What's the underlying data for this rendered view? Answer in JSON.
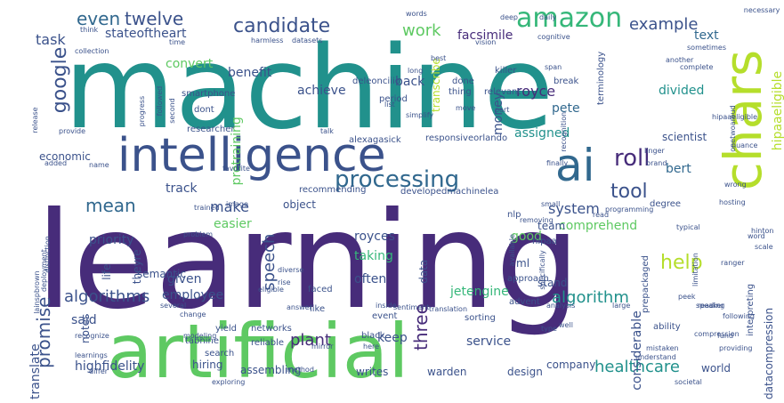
{
  "word_cloud": {
    "palette": {
      "dark_purple": "#472c7a",
      "indigo": "#3b528b",
      "blue": "#31688e",
      "teal": "#21918c",
      "sea_green": "#35b779",
      "green": "#5ec962",
      "lime": "#b5de2b",
      "yellow": "#dde318",
      "deep_purple": "#440154"
    },
    "words": [
      {
        "text": "machine",
        "color": "#21918c"
      },
      {
        "text": "learning",
        "color": "#472c7a"
      },
      {
        "text": "artificial",
        "color": "#5ec962"
      },
      {
        "text": "intelligence",
        "color": "#3b528b"
      },
      {
        "text": "chars",
        "color": "#b5de2b"
      },
      {
        "text": "ai",
        "color": "#31688e"
      },
      {
        "text": "amazon",
        "color": "#35b779"
      },
      {
        "text": "google",
        "color": "#3b528b"
      },
      {
        "text": "candidate",
        "color": "#3b528b"
      },
      {
        "text": "processing",
        "color": "#31688e"
      },
      {
        "text": "roll",
        "color": "#472c7a"
      },
      {
        "text": "tool",
        "color": "#3b528b"
      },
      {
        "text": "even",
        "color": "#31688e"
      },
      {
        "text": "twelve",
        "color": "#3b528b"
      },
      {
        "text": "example",
        "color": "#3b528b"
      },
      {
        "text": "help",
        "color": "#b5de2b"
      },
      {
        "text": "speech",
        "color": "#3b528b"
      },
      {
        "text": "three",
        "color": "#472c7a"
      },
      {
        "text": "algorithms",
        "color": "#3b528b"
      },
      {
        "text": "algorithm",
        "color": "#21918c"
      },
      {
        "text": "work",
        "color": "#5ec962"
      },
      {
        "text": "task",
        "color": "#3b528b"
      },
      {
        "text": "stateoftheart",
        "color": "#3b528b"
      },
      {
        "text": "facsimile",
        "color": "#472c7a"
      },
      {
        "text": "text",
        "color": "#31688e"
      },
      {
        "text": "mean",
        "color": "#31688e"
      },
      {
        "text": "make",
        "color": "#3b528b"
      },
      {
        "text": "system",
        "color": "#3b528b"
      },
      {
        "text": "promise",
        "color": "#3b528b"
      },
      {
        "text": "healthcare",
        "color": "#21918c"
      },
      {
        "text": "convert",
        "color": "#5ec962"
      },
      {
        "text": "benefit",
        "color": "#3b528b"
      },
      {
        "text": "achieve",
        "color": "#3b528b"
      },
      {
        "text": "royce",
        "color": "#472c7a"
      },
      {
        "text": "pete",
        "color": "#31688e"
      },
      {
        "text": "divided",
        "color": "#21918c"
      },
      {
        "text": "money",
        "color": "#3b528b"
      },
      {
        "text": "transcribe",
        "color": "#b5de2b"
      },
      {
        "text": "back",
        "color": "#3b528b"
      },
      {
        "text": "assigned",
        "color": "#21918c"
      },
      {
        "text": "bert",
        "color": "#31688e"
      },
      {
        "text": "hipaaeligible",
        "color": "#b5de2b"
      },
      {
        "text": "pretraining",
        "color": "#5ec962"
      },
      {
        "text": "economic",
        "color": "#3b528b"
      },
      {
        "text": "priority",
        "color": "#3b528b"
      },
      {
        "text": "track",
        "color": "#3b528b"
      },
      {
        "text": "comprehend",
        "color": "#5ec962"
      },
      {
        "text": "easier",
        "color": "#5ec962"
      },
      {
        "text": "royces",
        "color": "#3b528b"
      },
      {
        "text": "taking",
        "color": "#35b779"
      },
      {
        "text": "good",
        "color": "#5ec962"
      },
      {
        "text": "given",
        "color": "#3b528b"
      },
      {
        "text": "often",
        "color": "#3b528b"
      },
      {
        "text": "employee",
        "color": "#3b528b"
      },
      {
        "text": "jetengine",
        "color": "#35b779"
      },
      {
        "text": "considerable",
        "color": "#3b528b"
      },
      {
        "text": "keep",
        "color": "#3b528b"
      },
      {
        "text": "service",
        "color": "#3b528b"
      },
      {
        "text": "plant",
        "color": "#472c7a"
      },
      {
        "text": "said",
        "color": "#3b528b"
      },
      {
        "text": "translate",
        "color": "#3b528b"
      },
      {
        "text": "highfidelity",
        "color": "#3b528b"
      },
      {
        "text": "hiring",
        "color": "#3b528b"
      },
      {
        "text": "assembling",
        "color": "#3b528b"
      },
      {
        "text": "writes",
        "color": "#3b528b"
      },
      {
        "text": "warden",
        "color": "#3b528b"
      },
      {
        "text": "design",
        "color": "#3b528b"
      },
      {
        "text": "company",
        "color": "#3b528b"
      },
      {
        "text": "world",
        "color": "#3b528b"
      },
      {
        "text": "team",
        "color": "#3b528b"
      },
      {
        "text": "data",
        "color": "#3b528b"
      },
      {
        "text": "ml",
        "color": "#3b528b"
      },
      {
        "text": "stand",
        "color": "#3b528b"
      },
      {
        "text": "life",
        "color": "#3b528b"
      },
      {
        "text": "datacompression",
        "color": "#3b528b"
      },
      {
        "text": "notes",
        "color": "#3b528b"
      },
      {
        "text": "nlp",
        "color": "#3b528b"
      },
      {
        "text": "hipaa",
        "color": "#3b528b"
      },
      {
        "text": "object",
        "color": "#3b528b"
      },
      {
        "text": "recommending",
        "color": "#3b528b"
      },
      {
        "text": "developedmachinelea",
        "color": "#3b528b"
      },
      {
        "text": "scientist",
        "color": "#3b528b"
      },
      {
        "text": "alexagasick",
        "color": "#3b528b"
      },
      {
        "text": "responsiveorlando",
        "color": "#3b528b"
      },
      {
        "text": "researcher",
        "color": "#3b528b"
      },
      {
        "text": "smartphone",
        "color": "#3b528b"
      },
      {
        "text": "dont",
        "color": "#3b528b"
      },
      {
        "text": "deleonciiio",
        "color": "#3b528b"
      },
      {
        "text": "period",
        "color": "#3b528b"
      },
      {
        "text": "relevant",
        "color": "#3b528b"
      },
      {
        "text": "break",
        "color": "#3b528b"
      },
      {
        "text": "killer",
        "color": "#3b528b"
      },
      {
        "text": "thing",
        "color": "#3b528b"
      },
      {
        "text": "done",
        "color": "#3b528b"
      },
      {
        "text": "terminology",
        "color": "#3b528b"
      },
      {
        "text": "cognitive",
        "color": "#3b528b"
      },
      {
        "text": "vision",
        "color": "#3b528b"
      },
      {
        "text": "datasets",
        "color": "#3b528b"
      },
      {
        "text": "harmless",
        "color": "#3b528b"
      },
      {
        "text": "think",
        "color": "#3b528b"
      },
      {
        "text": "second",
        "color": "#3b528b"
      },
      {
        "text": "followed",
        "color": "#3b528b"
      },
      {
        "text": "progress",
        "color": "#3b528b"
      },
      {
        "text": "release",
        "color": "#3b528b"
      },
      {
        "text": "favorite",
        "color": "#3b528b"
      },
      {
        "text": "trained",
        "color": "#3b528b"
      },
      {
        "text": "image",
        "color": "#3b528b"
      },
      {
        "text": "deployment",
        "color": "#3b528b"
      },
      {
        "text": "distinction",
        "color": "#3b528b"
      },
      {
        "text": "theyre",
        "color": "#3b528b"
      },
      {
        "text": "semantic",
        "color": "#3b528b"
      },
      {
        "text": "yield",
        "color": "#3b528b"
      },
      {
        "text": "tabnine",
        "color": "#3b528b"
      },
      {
        "text": "search",
        "color": "#3b528b"
      },
      {
        "text": "networks",
        "color": "#3b528b"
      },
      {
        "text": "reliable",
        "color": "#3b528b"
      },
      {
        "text": "black",
        "color": "#3b528b"
      },
      {
        "text": "event",
        "color": "#3b528b"
      },
      {
        "text": "faced",
        "color": "#3b528b"
      },
      {
        "text": "eligible",
        "color": "#3b528b"
      },
      {
        "text": "sentiment",
        "color": "#3b528b"
      },
      {
        "text": "translation",
        "color": "#3b528b"
      },
      {
        "text": "sorting",
        "color": "#3b528b"
      },
      {
        "text": "advent",
        "color": "#3b528b"
      },
      {
        "text": "approach",
        "color": "#3b528b"
      },
      {
        "text": "prepackaged",
        "color": "#3b528b"
      },
      {
        "text": "interpreting",
        "color": "#3b528b"
      },
      {
        "text": "degree",
        "color": "#3b528b"
      },
      {
        "text": "small",
        "color": "#3b528b"
      },
      {
        "text": "recognition",
        "color": "#3b528b"
      },
      {
        "text": "finally",
        "color": "#3b528b"
      },
      {
        "text": "specifically",
        "color": "#3b528b"
      },
      {
        "text": "programming",
        "color": "#3b528b"
      },
      {
        "text": "limitation",
        "color": "#3b528b"
      },
      {
        "text": "linger",
        "color": "#3b528b"
      },
      {
        "text": "brand",
        "color": "#3b528b"
      },
      {
        "text": "onetwoaroud",
        "color": "#3b528b"
      },
      {
        "text": "complete",
        "color": "#3b528b"
      },
      {
        "text": "another",
        "color": "#3b528b"
      },
      {
        "text": "sometimes",
        "color": "#3b528b"
      },
      {
        "text": "deep",
        "color": "#3b528b"
      },
      {
        "text": "daily",
        "color": "#3b528b"
      },
      {
        "text": "necessary",
        "color": "#3b528b"
      },
      {
        "text": "words",
        "color": "#3b528b"
      },
      {
        "text": "ability",
        "color": "#3b528b"
      },
      {
        "text": "mistaken",
        "color": "#3b528b"
      },
      {
        "text": "understand",
        "color": "#3b528b"
      },
      {
        "text": "speaker",
        "color": "#3b528b"
      },
      {
        "text": "following",
        "color": "#3b528b"
      },
      {
        "text": "peek",
        "color": "#3b528b"
      },
      {
        "text": "compression",
        "color": "#3b528b"
      },
      {
        "text": "analysis",
        "color": "#3b528b"
      },
      {
        "text": "large",
        "color": "#3b528b"
      },
      {
        "text": "ranger",
        "color": "#3b528b"
      },
      {
        "text": "word",
        "color": "#3b528b"
      },
      {
        "text": "hinton",
        "color": "#3b528b"
      },
      {
        "text": "change",
        "color": "#3b528b"
      },
      {
        "text": "method",
        "color": "#3b528b"
      },
      {
        "text": "exploring",
        "color": "#3b528b"
      },
      {
        "text": "societal",
        "color": "#3b528b"
      },
      {
        "text": "mirror",
        "color": "#3b528b"
      },
      {
        "text": "diverse",
        "color": "#3b528b"
      },
      {
        "text": "problem",
        "color": "#3b528b"
      },
      {
        "text": "inside",
        "color": "#3b528b"
      },
      {
        "text": "answer",
        "color": "#3b528b"
      },
      {
        "text": "several",
        "color": "#3b528b"
      },
      {
        "text": "learnings",
        "color": "#3b528b"
      },
      {
        "text": "recognize",
        "color": "#3b528b"
      },
      {
        "text": "collection",
        "color": "#3b528b"
      },
      {
        "text": "time",
        "color": "#3b528b"
      },
      {
        "text": "simplify",
        "color": "#3b528b"
      },
      {
        "text": "list",
        "color": "#3b528b"
      },
      {
        "text": "move",
        "color": "#3b528b"
      },
      {
        "text": "part",
        "color": "#3b528b"
      },
      {
        "text": "best",
        "color": "#3b528b"
      },
      {
        "text": "span",
        "color": "#3b528b"
      },
      {
        "text": "long",
        "color": "#3b528b"
      },
      {
        "text": "talk",
        "color": "#3b528b"
      },
      {
        "text": "like",
        "color": "#3b528b"
      },
      {
        "text": "rise",
        "color": "#3b528b"
      },
      {
        "text": "well",
        "color": "#3b528b"
      },
      {
        "text": "type",
        "color": "#3b528b"
      },
      {
        "text": "nuance",
        "color": "#3b528b"
      },
      {
        "text": "wrong",
        "color": "#3b528b"
      },
      {
        "text": "hosting",
        "color": "#3b528b"
      },
      {
        "text": "reading",
        "color": "#3b528b"
      },
      {
        "text": "fund",
        "color": "#3b528b"
      },
      {
        "text": "providing",
        "color": "#3b528b"
      },
      {
        "text": "scale",
        "color": "#3b528b"
      },
      {
        "text": "added",
        "color": "#3b528b"
      },
      {
        "text": "provide",
        "color": "#3b528b"
      },
      {
        "text": "lainspbrown",
        "color": "#3b528b"
      },
      {
        "text": "name",
        "color": "#3b528b"
      },
      {
        "text": "removing",
        "color": "#3b528b"
      },
      {
        "text": "available",
        "color": "#3b528b"
      },
      {
        "text": "modeling",
        "color": "#3b528b"
      },
      {
        "text": "hipaaeligible",
        "color": "#3b528b"
      },
      {
        "text": "differ",
        "color": "#3b528b"
      },
      {
        "text": "here",
        "color": "#3b528b"
      },
      {
        "text": "read",
        "color": "#3b528b"
      },
      {
        "text": "typical",
        "color": "#3b528b"
      }
    ]
  }
}
